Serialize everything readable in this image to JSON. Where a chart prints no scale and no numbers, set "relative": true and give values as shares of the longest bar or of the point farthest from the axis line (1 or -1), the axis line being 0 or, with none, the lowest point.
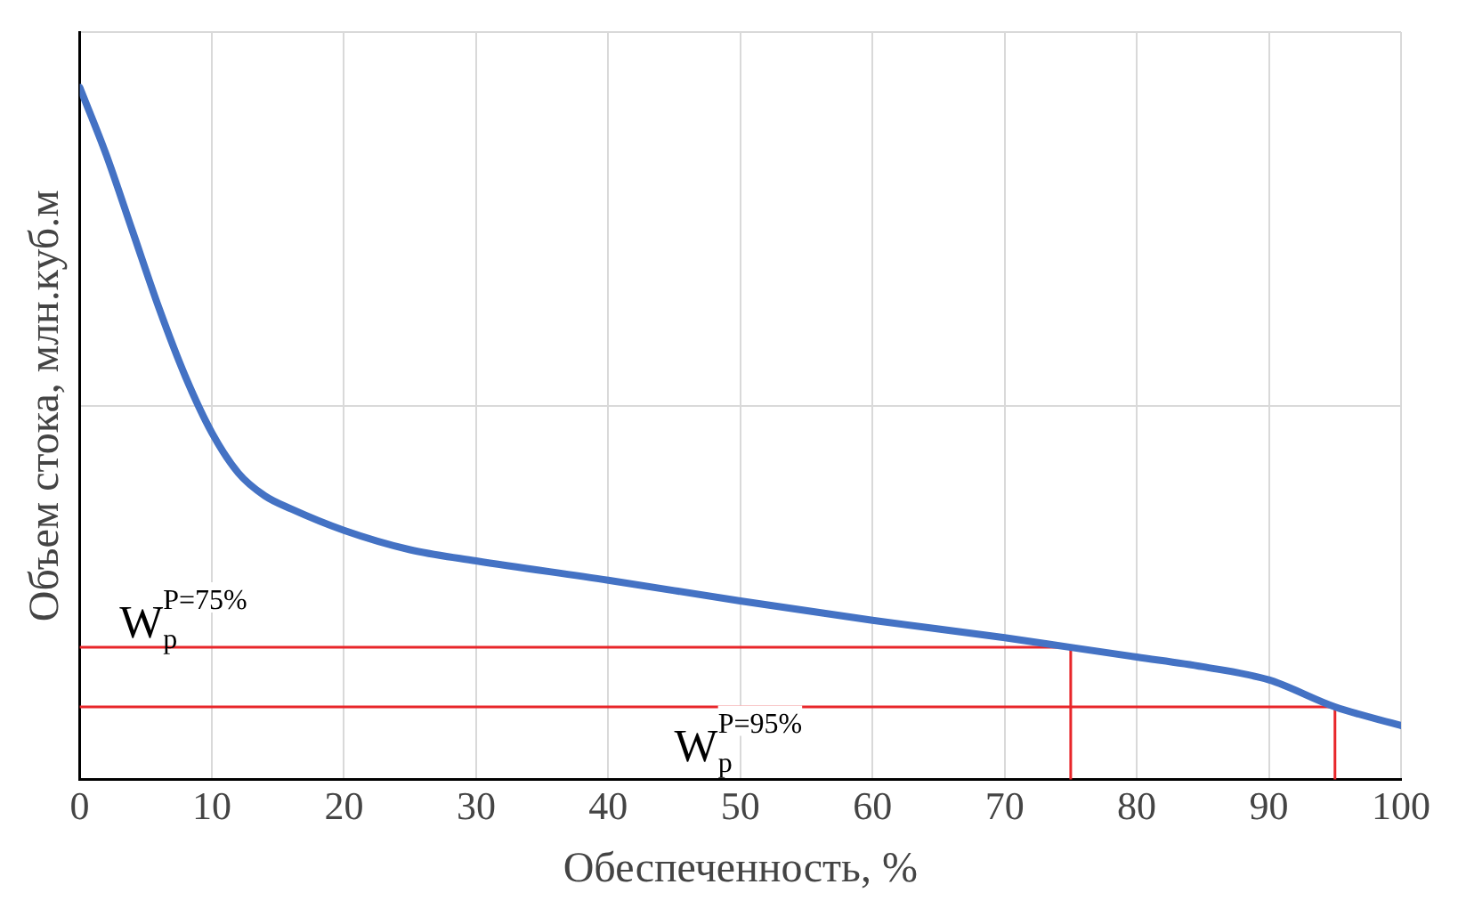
{
  "chart_data": {
    "type": "line",
    "xlabel": "Обеспеченность, %",
    "ylabel": "Объем стока, млн.куб.м",
    "relative": true,
    "xlim": [
      0,
      100
    ],
    "xticks": [
      0,
      10,
      20,
      30,
      40,
      50,
      60,
      70,
      80,
      90,
      100
    ],
    "grid": true,
    "legend": false,
    "marker": "none",
    "line_style": "solid",
    "series": [
      {
        "color": "#4472c4",
        "x": [
          0,
          2,
          4,
          6,
          8,
          10,
          12,
          14,
          16,
          20,
          25,
          30,
          40,
          50,
          60,
          70,
          75,
          80,
          85,
          90,
          95,
          100
        ],
        "values": [
          1,
          0.903,
          0.792,
          0.681,
          0.582,
          0.501,
          0.443,
          0.41,
          0.391,
          0.36,
          0.332,
          0.316,
          0.288,
          0.258,
          0.23,
          0.205,
          0.191,
          0.177,
          0.163,
          0.144,
          0.105,
          0.078
        ]
      },
      {
        "color": "#e8262a",
        "x": [
          0,
          75,
          75
        ],
        "values": [
          0.191,
          0.191,
          0
        ]
      },
      {
        "color": "#e8262a",
        "x": [
          0,
          95,
          95
        ],
        "values": [
          0.105,
          0.105,
          0
        ]
      }
    ],
    "annotations": [
      "W$_{p}$$^{P=75%}$",
      "W$_{p}$$^{P=95%}$"
    ]
  }
}
